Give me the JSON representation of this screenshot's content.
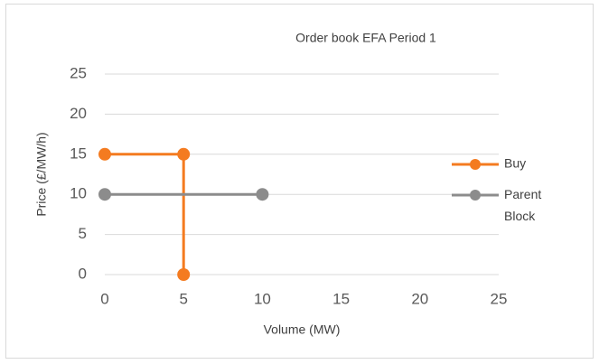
{
  "chart_data": {
    "type": "scatter",
    "title": "Order book EFA Period 1",
    "x_label": "Volume (MW)",
    "y_label": "Price (£/MW/h)",
    "series": [
      {
        "name": "Buy",
        "color": "#f47b20",
        "x": [
          0,
          5,
          5
        ],
        "values": [
          15,
          15,
          0
        ]
      },
      {
        "name": "Parent Block",
        "color": "#8c8c8c",
        "x": [
          0,
          10
        ],
        "values": [
          10,
          10
        ]
      }
    ],
    "xlim": [
      0,
      25
    ],
    "xticks": [
      0,
      5,
      10,
      15,
      20,
      25
    ],
    "ylim": [
      0,
      25
    ],
    "yticks": [
      0,
      5,
      10,
      15,
      20,
      25
    ],
    "grid": true,
    "legend": "right"
  }
}
